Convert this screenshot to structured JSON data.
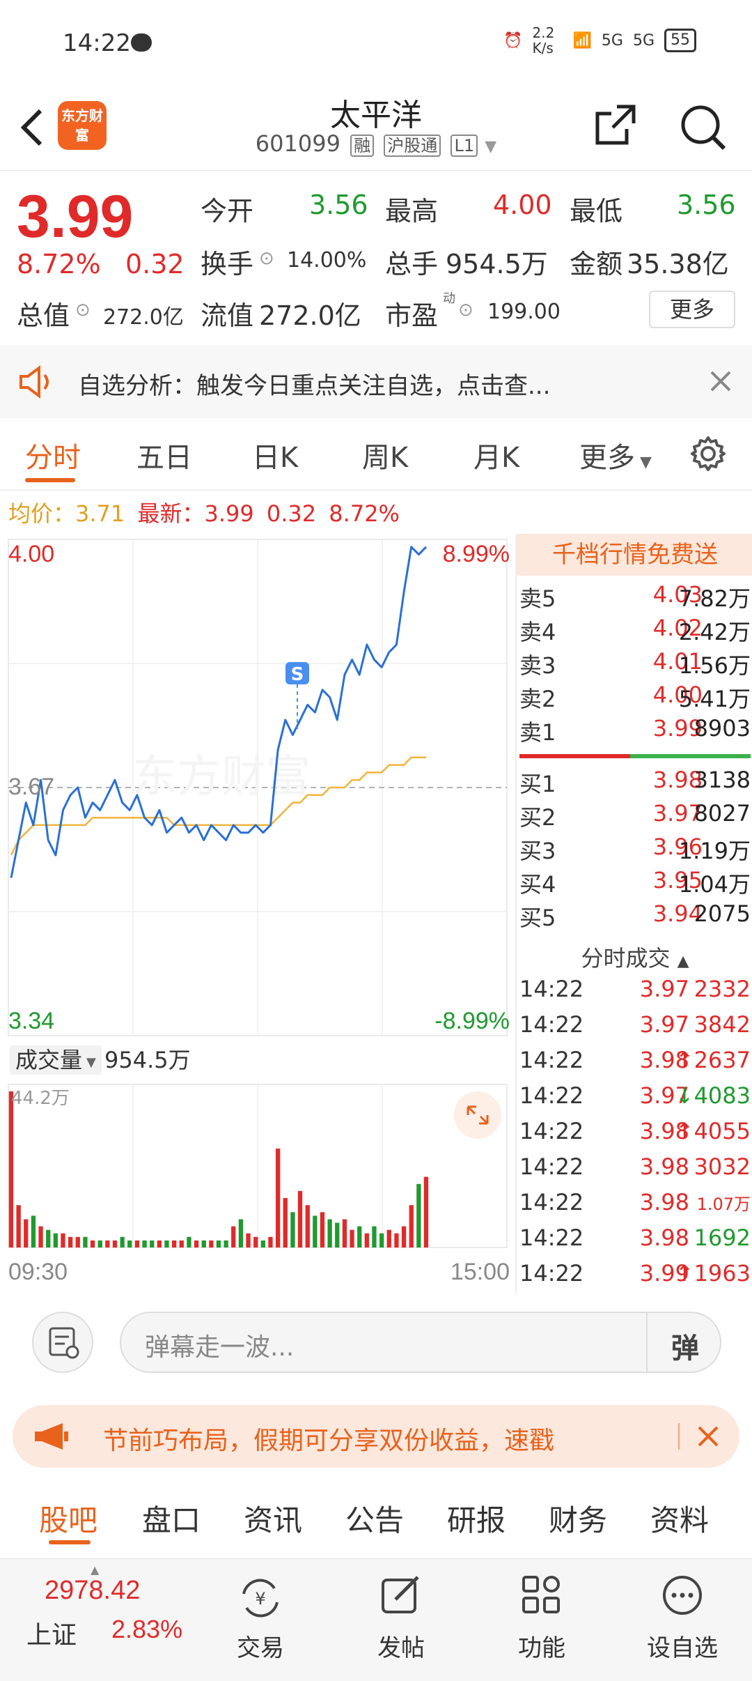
{
  "status": {
    "time": "14:22",
    "net_speed": "2.2 K/s",
    "signal1": "5G",
    "signal2": "5G",
    "battery": "55"
  },
  "header": {
    "logo": "东方财富",
    "name": "太平洋",
    "code": "601099",
    "tags": [
      "融",
      "沪股通",
      "L1"
    ]
  },
  "quote": {
    "price": "3.99",
    "change_pct": "8.72%",
    "change": "0.32",
    "open_label": "今开",
    "open": "3.56",
    "high_label": "最高",
    "high": "4.00",
    "low_label": "最低",
    "low": "3.56",
    "turnover_label": "换手",
    "turnover": "14.00%",
    "volume_label": "总手",
    "volume": "954.5万",
    "amount_label": "金额",
    "amount": "35.38亿",
    "mktcap_label": "总值",
    "mktcap": "272.0亿",
    "float_label": "流值",
    "float": "272.0亿",
    "pe_label": "市盈",
    "pe_sup": "动",
    "pe": "199.00",
    "more": "更多"
  },
  "notice": {
    "text": "自选分析：触发今日重点关注自选，点击查..."
  },
  "tabs": [
    "分时",
    "五日",
    "日K",
    "周K",
    "月K",
    "更多"
  ],
  "infoline": {
    "avg_label": "均价：",
    "avg": "3.71",
    "latest_label": "最新：",
    "latest": "3.99",
    "chg": "0.32",
    "pct": "8.72%"
  },
  "chart": {
    "y_top": "4.00",
    "y_mid": "3.67",
    "y_bottom": "3.34",
    "pct_top": "8.99%",
    "pct_bottom": "-8.99%",
    "vol_label": "成交量",
    "vol_total": "954.5万",
    "vol_max": "44.2万",
    "time_start": "09:30",
    "time_end": "15:00",
    "signal": "S",
    "watermark": "东方财富"
  },
  "chart_data": {
    "type": "line",
    "title": "",
    "ylim": [
      3.34,
      4.0
    ],
    "price_series": [
      3.55,
      3.6,
      3.65,
      3.62,
      3.68,
      3.6,
      3.58,
      3.64,
      3.66,
      3.67,
      3.63,
      3.65,
      3.64,
      3.66,
      3.68,
      3.65,
      3.64,
      3.66,
      3.63,
      3.62,
      3.64,
      3.61,
      3.62,
      3.63,
      3.61,
      3.62,
      3.6,
      3.62,
      3.61,
      3.6,
      3.62,
      3.61,
      3.61,
      3.62,
      3.61,
      3.62,
      3.72,
      3.76,
      3.74,
      3.76,
      3.78,
      3.77,
      3.8,
      3.79,
      3.76,
      3.82,
      3.84,
      3.82,
      3.86,
      3.84,
      3.83,
      3.85,
      3.86,
      3.93,
      3.99,
      3.98,
      3.99
    ],
    "avg_series": [
      3.58,
      3.6,
      3.61,
      3.62,
      3.62,
      3.62,
      3.62,
      3.62,
      3.62,
      3.62,
      3.62,
      3.63,
      3.63,
      3.63,
      3.63,
      3.63,
      3.63,
      3.63,
      3.63,
      3.63,
      3.63,
      3.63,
      3.62,
      3.62,
      3.62,
      3.62,
      3.62,
      3.62,
      3.62,
      3.62,
      3.62,
      3.62,
      3.62,
      3.62,
      3.62,
      3.62,
      3.63,
      3.64,
      3.65,
      3.65,
      3.66,
      3.66,
      3.66,
      3.67,
      3.67,
      3.67,
      3.68,
      3.68,
      3.69,
      3.69,
      3.69,
      3.7,
      3.7,
      3.7,
      3.71,
      3.71,
      3.71
    ],
    "volume_wan": [
      44.2,
      12,
      8,
      9,
      6,
      5,
      4,
      4,
      3,
      3,
      3,
      2,
      2,
      2,
      2,
      3,
      2,
      2,
      2,
      2,
      2,
      2,
      2,
      2,
      3,
      2,
      2,
      2,
      2,
      2,
      6,
      8,
      4,
      3,
      2,
      3,
      28,
      14,
      10,
      16,
      12,
      9,
      10,
      8,
      7,
      8,
      5,
      6,
      4,
      6,
      4,
      5,
      4,
      6,
      12,
      18,
      20
    ],
    "series": [
      {
        "name": "均价",
        "color": "#f0b43c"
      },
      {
        "name": "最新",
        "color": "#2a6fd6"
      }
    ]
  },
  "ladder": {
    "header": "千档行情免费送",
    "asks": [
      {
        "n": "卖5",
        "p": "4.03",
        "v": "7.82万"
      },
      {
        "n": "卖4",
        "p": "4.02",
        "v": "2.42万"
      },
      {
        "n": "卖3",
        "p": "4.01",
        "v": "1.56万"
      },
      {
        "n": "卖2",
        "p": "4.00",
        "v": "5.41万"
      },
      {
        "n": "卖1",
        "p": "3.99",
        "v": "8903"
      }
    ],
    "bids": [
      {
        "n": "买1",
        "p": "3.98",
        "v": "3138"
      },
      {
        "n": "买2",
        "p": "3.97",
        "v": "8027"
      },
      {
        "n": "买3",
        "p": "3.96",
        "v": "1.19万"
      },
      {
        "n": "买4",
        "p": "3.95",
        "v": "1.04万"
      },
      {
        "n": "买5",
        "p": "3.94",
        "v": "2075"
      }
    ],
    "trades_title": "分时成交",
    "trades": [
      {
        "t": "14:22",
        "p": "3.97",
        "v": "2332",
        "d": "",
        "c": "red"
      },
      {
        "t": "14:22",
        "p": "3.97",
        "v": "3842",
        "d": "",
        "c": "red"
      },
      {
        "t": "14:22",
        "p": "3.98",
        "v": "2637",
        "d": "↑",
        "c": "red"
      },
      {
        "t": "14:22",
        "p": "3.97",
        "v": "4083",
        "d": "↓",
        "c": "green"
      },
      {
        "t": "14:22",
        "p": "3.98",
        "v": "4055",
        "d": "↑",
        "c": "red"
      },
      {
        "t": "14:22",
        "p": "3.98",
        "v": "3032",
        "d": "",
        "c": "red"
      },
      {
        "t": "14:22",
        "p": "3.98",
        "v": "1.07万",
        "d": "",
        "c": "red"
      },
      {
        "t": "14:22",
        "p": "3.98",
        "v": "1692",
        "d": "",
        "c": "green"
      },
      {
        "t": "14:22",
        "p": "3.99",
        "v": "1963",
        "d": "↑",
        "c": "red"
      }
    ]
  },
  "input": {
    "placeholder": "弹幕走一波...",
    "danmu_btn": "弹"
  },
  "promo": {
    "text": "节前巧布局，假期可分享双份收益，速戳"
  },
  "bottom_tabs": [
    "股吧",
    "盘口",
    "资讯",
    "公告",
    "研报",
    "财务",
    "资料"
  ],
  "bottombar": {
    "index_value": "2978.42",
    "index_name": "上证",
    "index_pct": "2.83%",
    "items": [
      "交易",
      "发帖",
      "功能",
      "设自选"
    ]
  }
}
